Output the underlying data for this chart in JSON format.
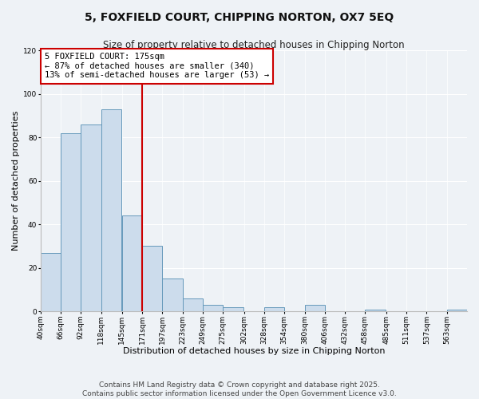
{
  "title": "5, FOXFIELD COURT, CHIPPING NORTON, OX7 5EQ",
  "subtitle": "Size of property relative to detached houses in Chipping Norton",
  "xlabel": "Distribution of detached houses by size in Chipping Norton",
  "ylabel": "Number of detached properties",
  "bar_values": [
    27,
    82,
    86,
    93,
    44,
    30,
    15,
    6,
    3,
    2,
    0,
    2,
    0,
    3,
    0,
    0,
    1,
    0,
    0,
    0,
    1,
    0
  ],
  "bin_left": [
    40,
    66,
    92,
    118,
    145,
    171,
    197,
    223,
    249,
    275,
    302,
    328,
    354,
    380,
    406,
    432,
    458,
    485,
    511,
    537,
    563,
    589
  ],
  "bin_width": 26,
  "vline_x": 171,
  "vline_color": "#cc0000",
  "bar_facecolor": "#ccdcec",
  "bar_edgecolor": "#6699bb",
  "annotation_title": "5 FOXFIELD COURT: 175sqm",
  "annotation_line1": "← 87% of detached houses are smaller (340)",
  "annotation_line2": "13% of semi-detached houses are larger (53) →",
  "annotation_box_facecolor": "#ffffff",
  "annotation_box_edgecolor": "#cc0000",
  "ylim": [
    0,
    120
  ],
  "yticks": [
    0,
    20,
    40,
    60,
    80,
    100,
    120
  ],
  "xlim_left": 40,
  "xlim_right": 589,
  "xtick_positions": [
    40,
    66,
    92,
    118,
    145,
    171,
    197,
    223,
    249,
    275,
    302,
    328,
    354,
    380,
    406,
    432,
    458,
    485,
    511,
    537,
    563
  ],
  "xtick_labels": [
    "40sqm",
    "66sqm",
    "92sqm",
    "118sqm",
    "145sqm",
    "171sqm",
    "197sqm",
    "223sqm",
    "249sqm",
    "275sqm",
    "302sqm",
    "328sqm",
    "354sqm",
    "380sqm",
    "406sqm",
    "432sqm",
    "458sqm",
    "485sqm",
    "511sqm",
    "537sqm",
    "563sqm"
  ],
  "footnote1": "Contains HM Land Registry data © Crown copyright and database right 2025.",
  "footnote2": "Contains public sector information licensed under the Open Government Licence v3.0.",
  "bg_color": "#eef2f6",
  "grid_color": "#ffffff",
  "title_fontsize": 10,
  "subtitle_fontsize": 8.5,
  "axis_label_fontsize": 8,
  "tick_fontsize": 6.5,
  "annot_fontsize": 7.5,
  "footnote_fontsize": 6.5
}
